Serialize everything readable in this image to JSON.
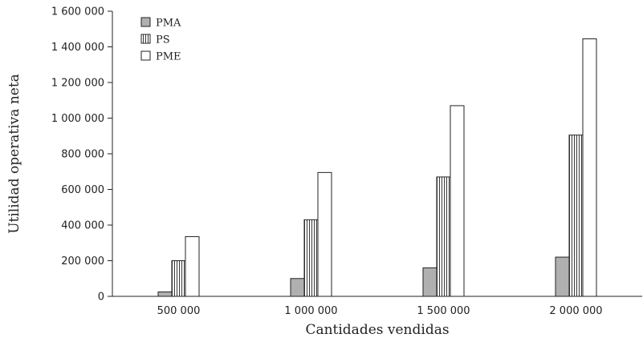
{
  "chart_data": {
    "type": "bar",
    "categories": [
      "500 000",
      "1 000 000",
      "1 500 000",
      "2 000 000"
    ],
    "series": [
      {
        "name": "PMA",
        "values": [
          25000,
          100000,
          160000,
          220000
        ],
        "pattern": "gray"
      },
      {
        "name": "PS",
        "values": [
          200000,
          430000,
          670000,
          905000
        ],
        "pattern": "vertical-stripes"
      },
      {
        "name": "PME",
        "values": [
          335000,
          695000,
          1070000,
          1445000
        ],
        "pattern": "white"
      }
    ],
    "xlabel": "Cantidades vendidas",
    "ylabel": "Utilidad operativa neta",
    "ylim": [
      0,
      1600000
    ],
    "yticks": [
      0,
      200000,
      400000,
      600000,
      800000,
      1000000,
      1200000,
      1400000,
      1600000
    ],
    "ytick_labels": [
      "0",
      "200 000",
      "400 000",
      "600 000",
      "800 000",
      "1 000 000",
      "1 200 000",
      "1 400 000",
      "1 600 000"
    ],
    "grid": false,
    "legend_position": "top-left",
    "colors": {
      "PMA": "#b0b0b0",
      "PS": "#ffffff",
      "PME": "#ffffff",
      "stroke": "#222222"
    }
  }
}
